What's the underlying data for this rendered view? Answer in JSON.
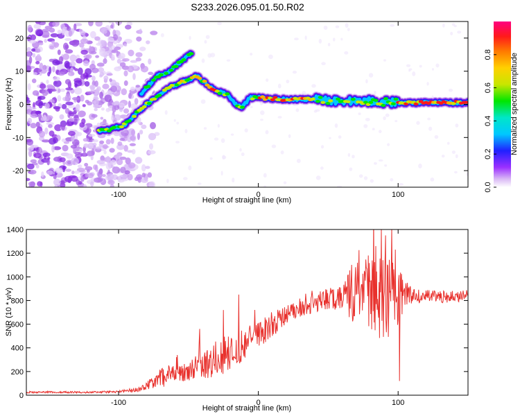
{
  "title": "S233.2026.095.01.50.R02",
  "chart_data": [
    {
      "type": "heatmap",
      "name": "spectrogram",
      "xlabel": "Height of straight line (km)",
      "ylabel": "Frequency (Hz)",
      "xlim": [
        -166,
        150
      ],
      "ylim": [
        -25,
        25
      ],
      "xticks": [
        -100,
        0,
        100
      ],
      "yticks": [
        -20,
        -10,
        0,
        10,
        20
      ],
      "colorbar": {
        "label": "Normalized spectral amplitude",
        "range": [
          0,
          1
        ],
        "ticks": [
          0.0,
          0.2,
          0.4,
          0.6,
          0.8
        ]
      },
      "ridges": [
        {
          "name": "lower-branch",
          "x": [
            -114,
            -105,
            -95,
            -88,
            -80,
            -72,
            -64,
            -56,
            -50,
            -44,
            -38,
            -30,
            -22,
            -16,
            -12,
            -6,
            0,
            20,
            40,
            60,
            80,
            100,
            120,
            150
          ],
          "y": [
            -8,
            -7.5,
            -6,
            -3,
            0,
            2.5,
            5,
            6.5,
            7.5,
            8.5,
            6.5,
            4,
            3,
            0,
            -1,
            2,
            2,
            1.5,
            1.5,
            1,
            1,
            0.5,
            0.5,
            0.5
          ]
        },
        {
          "name": "upper-branch",
          "x": [
            -84,
            -78,
            -72,
            -64,
            -58,
            -52,
            -48
          ],
          "y": [
            3,
            6,
            8.5,
            10,
            12,
            14,
            15.5
          ]
        }
      ]
    },
    {
      "type": "line",
      "name": "snr",
      "xlabel": "Height of straight line (km)",
      "ylabel": "SNR (10 * v/v)",
      "xlim": [
        -166,
        150
      ],
      "ylim": [
        0,
        1400
      ],
      "xticks": [
        -100,
        0,
        100
      ],
      "yticks": [
        0,
        200,
        400,
        600,
        800,
        1000,
        1200,
        1400
      ],
      "color": "#e8302c",
      "envelope": {
        "x": [
          -166,
          -120,
          -100,
          -85,
          -75,
          -68,
          -60,
          -50,
          -40,
          -30,
          -20,
          -10,
          0,
          10,
          20,
          30,
          40,
          50,
          60,
          70,
          80,
          90,
          100,
          110,
          130,
          150
        ],
        "mid": [
          25,
          25,
          30,
          50,
          110,
          160,
          190,
          210,
          250,
          300,
          360,
          420,
          520,
          600,
          680,
          730,
          780,
          810,
          830,
          850,
          840,
          830,
          820,
          840,
          830,
          840
        ],
        "amp": [
          8,
          8,
          10,
          20,
          50,
          90,
          80,
          90,
          110,
          150,
          170,
          150,
          120,
          110,
          80,
          70,
          80,
          90,
          120,
          300,
          360,
          380,
          250,
          60,
          50,
          50
        ]
      },
      "spikes": [
        {
          "x": -58,
          "y": 340
        },
        {
          "x": -42,
          "y": 560
        },
        {
          "x": -25,
          "y": 720
        },
        {
          "x": -14,
          "y": 850
        },
        {
          "x": 84,
          "y": 1260
        },
        {
          "x": 88,
          "y": 1400
        },
        {
          "x": 91,
          "y": 1350
        },
        {
          "x": 98,
          "y": 1230
        },
        {
          "x": 101,
          "y": 120
        }
      ]
    }
  ]
}
